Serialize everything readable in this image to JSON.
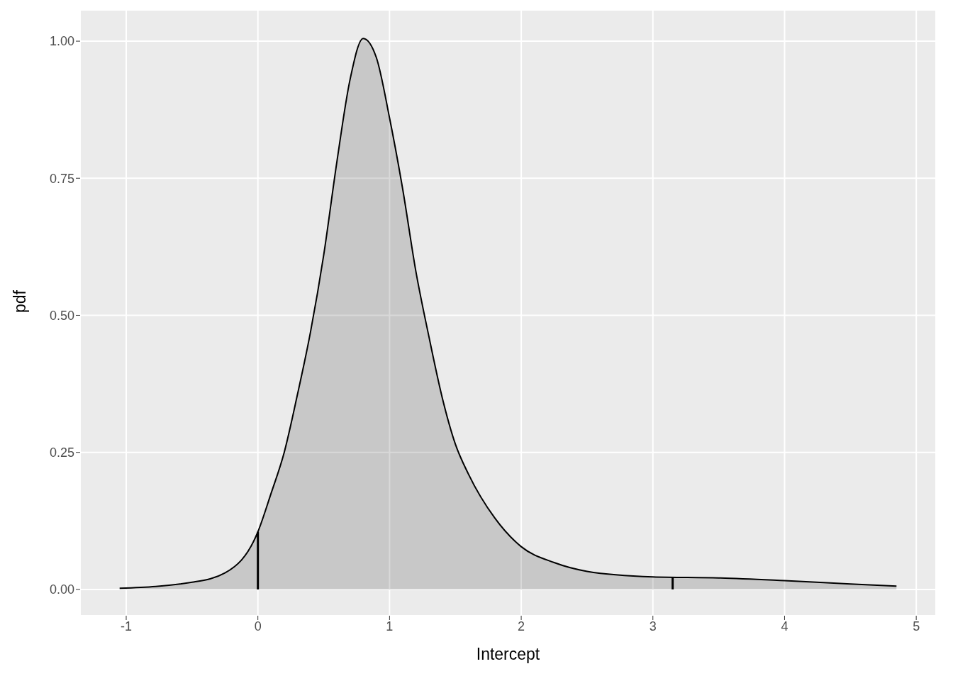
{
  "chart_data": {
    "type": "area",
    "xlabel": "Intercept",
    "ylabel": "pdf",
    "xlim": [
      -1.35,
      5.15
    ],
    "xticks": [
      -1,
      0,
      1,
      2,
      3,
      4,
      5
    ],
    "ylim": [
      -0.048,
      1.057
    ],
    "yticks": [
      {
        "value": 0,
        "label": "0.00"
      },
      {
        "value": 0.25,
        "label": "0.25"
      },
      {
        "value": 0.5,
        "label": "0.50"
      },
      {
        "value": 0.75,
        "label": "0.75"
      },
      {
        "value": 1,
        "label": "1.00"
      }
    ],
    "grid": true,
    "legend": false,
    "series": [
      {
        "color": "#000000",
        "x": [
          -1.05,
          -0.5,
          -0.25,
          0,
          0.1,
          0.2,
          0.3,
          0.4,
          0.5,
          0.6,
          0.7,
          0.8,
          0.9,
          1.0,
          1.1,
          1.2,
          1.3,
          1.4,
          1.5,
          1.6,
          1.8,
          2.0,
          2.25,
          2.5,
          3.0,
          3.5,
          4.0,
          4.5,
          4.85
        ],
        "values": [
          0.002,
          0.013,
          0.03,
          0.105,
          0.175,
          0.25,
          0.355,
          0.47,
          0.61,
          0.78,
          0.93,
          1.005,
          0.97,
          0.86,
          0.73,
          0.58,
          0.46,
          0.35,
          0.265,
          0.21,
          0.13,
          0.078,
          0.049,
          0.033,
          0.023,
          0.021,
          0.016,
          0.01,
          0.006
        ]
      },
      {
        "type": "line",
        "color": "#000000",
        "x": [
          0,
          0
        ],
        "values": [
          0,
          0.105
        ]
      },
      {
        "type": "line",
        "color": "#000000",
        "x": [
          3.15,
          3.15
        ],
        "values": [
          0,
          0.022
        ]
      }
    ]
  }
}
